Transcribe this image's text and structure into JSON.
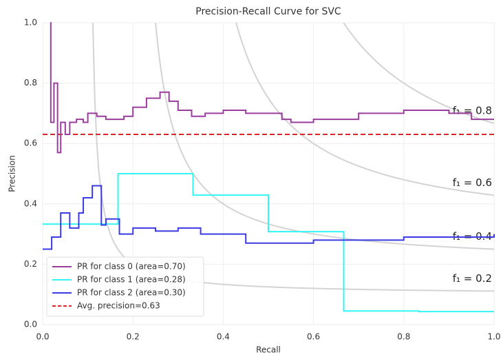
{
  "chart_data": {
    "type": "step",
    "title": "Precision-Recall Curve for SVC",
    "x_label": "Recall",
    "y_label": "Precision",
    "xlim": [
      0,
      1
    ],
    "ylim": [
      0,
      1
    ],
    "xticks": [
      {
        "value": 0,
        "label": "0.0"
      },
      0.2,
      0.4,
      0.6,
      0.8,
      {
        "value": 1,
        "label": "1.0"
      }
    ],
    "yticks": [
      {
        "value": 0,
        "label": "0.0"
      },
      0.2,
      0.4,
      0.6,
      0.8,
      {
        "value": 1,
        "label": "1.0"
      }
    ],
    "grid": true,
    "legend": "lower left",
    "iso_f1": [
      {
        "value": 0.2,
        "label": "f₁ = 0.2"
      },
      {
        "value": 0.4,
        "label": "f₁ = 0.4"
      },
      {
        "value": 0.6,
        "label": "f₁ = 0.6"
      },
      {
        "value": 0.8,
        "label": "f₁ = 0.8"
      }
    ],
    "series": [
      {
        "name": "PR for class 0 (area=0.70)",
        "color": "#9a3c9e",
        "x": [
          0.017,
          0.018,
          0.025,
          0.033,
          0.04,
          0.05,
          0.06,
          0.075,
          0.09,
          0.1,
          0.12,
          0.14,
          0.16,
          0.18,
          0.2,
          0.23,
          0.26,
          0.28,
          0.3,
          0.33,
          0.36,
          0.4,
          0.45,
          0.5,
          0.53,
          0.55,
          0.6,
          0.7,
          0.8,
          0.85,
          0.9,
          0.95,
          1.0
        ],
        "values": [
          1.0,
          0.67,
          0.8,
          0.57,
          0.67,
          0.63,
          0.67,
          0.68,
          0.67,
          0.7,
          0.69,
          0.68,
          0.68,
          0.69,
          0.72,
          0.75,
          0.77,
          0.74,
          0.71,
          0.69,
          0.7,
          0.71,
          0.7,
          0.7,
          0.68,
          0.67,
          0.68,
          0.7,
          0.71,
          0.71,
          0.7,
          0.68,
          0.68
        ]
      },
      {
        "name": "PR for class 1 (area=0.28)",
        "color": "#33f5f5",
        "x": [
          0,
          0.167,
          0.333,
          0.5,
          0.667,
          0.833,
          1.0
        ],
        "values": [
          0.333,
          0.5,
          0.429,
          0.308,
          0.045,
          0.043,
          0.043
        ]
      },
      {
        "name": "PR for class 2 (area=0.30)",
        "color": "#3a3ae6",
        "x": [
          0,
          0.02,
          0.04,
          0.06,
          0.08,
          0.09,
          0.11,
          0.13,
          0.14,
          0.17,
          0.2,
          0.25,
          0.3,
          0.35,
          0.4,
          0.45,
          0.5,
          0.6,
          0.7,
          0.8,
          0.9,
          1.0
        ],
        "values": [
          0.25,
          0.29,
          0.37,
          0.32,
          0.37,
          0.42,
          0.46,
          0.33,
          0.35,
          0.3,
          0.32,
          0.31,
          0.32,
          0.3,
          0.3,
          0.27,
          0.27,
          0.28,
          0.28,
          0.29,
          0.29,
          0.3
        ]
      }
    ],
    "average": {
      "name": "Avg. precision=0.63",
      "value": 0.63,
      "color": "#d62728"
    }
  }
}
